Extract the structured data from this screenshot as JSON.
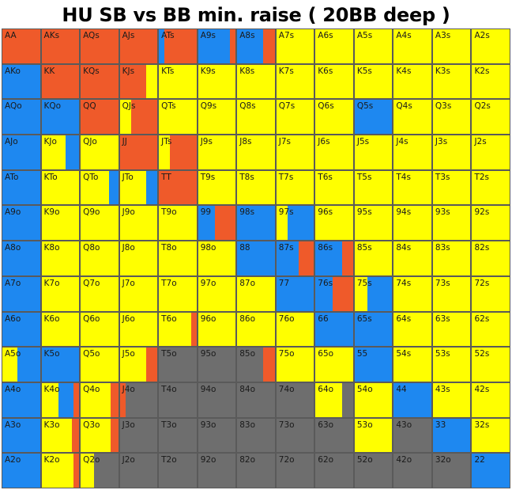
{
  "title": "HU SB vs BB min. raise ( 20BB deep )",
  "colors": {
    "raise": "#ef5a2a",
    "call": "#ffff00",
    "shove": "#1e88f0",
    "fold": "#6e6e6e",
    "border": "#5a5a5a"
  },
  "chart_data": {
    "type": "heatmap",
    "title": "HU SB vs BB min. raise ( 20BB deep )",
    "note": "Each cell's segments list action frequencies (left to right) as fractions.",
    "rows": [
      [
        "AA",
        "AKs",
        "AQs",
        "AJs",
        "ATs",
        "A9s",
        "A8s",
        "A7s",
        "A6s",
        "A5s",
        "A4s",
        "A3s",
        "A2s"
      ],
      [
        "AKo",
        "KK",
        "KQs",
        "KJs",
        "KTs",
        "K9s",
        "K8s",
        "K7s",
        "K6s",
        "K5s",
        "K4s",
        "K3s",
        "K2s"
      ],
      [
        "AQo",
        "KQo",
        "QQ",
        "QJs",
        "QTs",
        "Q9s",
        "Q8s",
        "Q7s",
        "Q6s",
        "Q5s",
        "Q4s",
        "Q3s",
        "Q2s"
      ],
      [
        "AJo",
        "KJo",
        "QJo",
        "JJ",
        "JTs",
        "J9s",
        "J8s",
        "J7s",
        "J6s",
        "J5s",
        "J4s",
        "J3s",
        "J2s"
      ],
      [
        "ATo",
        "KTo",
        "QTo",
        "JTo",
        "TT",
        "T9s",
        "T8s",
        "T7s",
        "T6s",
        "T5s",
        "T4s",
        "T3s",
        "T2s"
      ],
      [
        "A9o",
        "K9o",
        "Q9o",
        "J9o",
        "T9o",
        "99",
        "98s",
        "97s",
        "96s",
        "95s",
        "94s",
        "93s",
        "92s"
      ],
      [
        "A8o",
        "K8o",
        "Q8o",
        "J8o",
        "T8o",
        "98o",
        "88",
        "87s",
        "86s",
        "85s",
        "84s",
        "83s",
        "82s"
      ],
      [
        "A7o",
        "K7o",
        "Q7o",
        "J7o",
        "T7o",
        "97o",
        "87o",
        "77",
        "76s",
        "75s",
        "74s",
        "73s",
        "72s"
      ],
      [
        "A6o",
        "K6o",
        "Q6o",
        "J6o",
        "T6o",
        "96o",
        "86o",
        "76o",
        "66",
        "65s",
        "64s",
        "63s",
        "62s"
      ],
      [
        "A5o",
        "K5o",
        "Q5o",
        "J5o",
        "T5o",
        "95o",
        "85o",
        "75o",
        "65o",
        "55",
        "54s",
        "53s",
        "52s"
      ],
      [
        "A4o",
        "K4o",
        "Q4o",
        "J4o",
        "T4o",
        "94o",
        "84o",
        "74o",
        "64o",
        "54o",
        "44",
        "43s",
        "42s"
      ],
      [
        "A3o",
        "K3o",
        "Q3o",
        "J3o",
        "T3o",
        "93o",
        "83o",
        "73o",
        "63o",
        "53o",
        "43o",
        "33",
        "32s"
      ],
      [
        "A2o",
        "K2o",
        "Q2o",
        "J2o",
        "T2o",
        "92o",
        "82o",
        "72o",
        "62o",
        "52o",
        "42o",
        "32o",
        "22"
      ]
    ],
    "segments": [
      [
        [
          [
            "raise",
            1
          ]
        ],
        [
          [
            "raise",
            1
          ]
        ],
        [
          [
            "raise",
            1
          ]
        ],
        [
          [
            "raise",
            1
          ]
        ],
        [
          [
            "shove",
            0.15
          ],
          [
            "raise",
            0.85
          ]
        ],
        [
          [
            "shove",
            0.85
          ],
          [
            "raise",
            0.15
          ]
        ],
        [
          [
            "shove",
            0.7
          ],
          [
            "raise",
            0.3
          ]
        ],
        [
          [
            "call",
            1
          ]
        ],
        [
          [
            "call",
            1
          ]
        ],
        [
          [
            "call",
            1
          ]
        ],
        [
          [
            "call",
            1
          ]
        ],
        [
          [
            "call",
            1
          ]
        ],
        [
          [
            "call",
            1
          ]
        ]
      ],
      [
        [
          [
            "shove",
            1
          ]
        ],
        [
          [
            "raise",
            1
          ]
        ],
        [
          [
            "raise",
            1
          ]
        ],
        [
          [
            "raise",
            0.7
          ],
          [
            "call",
            0.3
          ]
        ],
        [
          [
            "call",
            1
          ]
        ],
        [
          [
            "call",
            1
          ]
        ],
        [
          [
            "call",
            1
          ]
        ],
        [
          [
            "call",
            1
          ]
        ],
        [
          [
            "call",
            1
          ]
        ],
        [
          [
            "call",
            1
          ]
        ],
        [
          [
            "call",
            1
          ]
        ],
        [
          [
            "call",
            1
          ]
        ],
        [
          [
            "call",
            1
          ]
        ]
      ],
      [
        [
          [
            "shove",
            1
          ]
        ],
        [
          [
            "shove",
            1
          ]
        ],
        [
          [
            "raise",
            1
          ]
        ],
        [
          [
            "call",
            0.3
          ],
          [
            "raise",
            0.7
          ]
        ],
        [
          [
            "call",
            1
          ]
        ],
        [
          [
            "call",
            1
          ]
        ],
        [
          [
            "call",
            1
          ]
        ],
        [
          [
            "call",
            1
          ]
        ],
        [
          [
            "call",
            1
          ]
        ],
        [
          [
            "shove",
            1
          ]
        ],
        [
          [
            "call",
            1
          ]
        ],
        [
          [
            "call",
            1
          ]
        ],
        [
          [
            "call",
            1
          ]
        ]
      ],
      [
        [
          [
            "shove",
            1
          ]
        ],
        [
          [
            "call",
            0.65
          ],
          [
            "shove",
            0.35
          ]
        ],
        [
          [
            "call",
            1
          ]
        ],
        [
          [
            "raise",
            1
          ]
        ],
        [
          [
            "call",
            0.3
          ],
          [
            "raise",
            0.7
          ]
        ],
        [
          [
            "call",
            1
          ]
        ],
        [
          [
            "call",
            1
          ]
        ],
        [
          [
            "call",
            1
          ]
        ],
        [
          [
            "call",
            1
          ]
        ],
        [
          [
            "call",
            1
          ]
        ],
        [
          [
            "call",
            1
          ]
        ],
        [
          [
            "call",
            1
          ]
        ],
        [
          [
            "call",
            1
          ]
        ]
      ],
      [
        [
          [
            "shove",
            1
          ]
        ],
        [
          [
            "call",
            1
          ]
        ],
        [
          [
            "call",
            0.75
          ],
          [
            "shove",
            0.25
          ]
        ],
        [
          [
            "call",
            0.7
          ],
          [
            "shove",
            0.3
          ]
        ],
        [
          [
            "raise",
            1
          ]
        ],
        [
          [
            "call",
            1
          ]
        ],
        [
          [
            "call",
            1
          ]
        ],
        [
          [
            "call",
            1
          ]
        ],
        [
          [
            "call",
            1
          ]
        ],
        [
          [
            "call",
            1
          ]
        ],
        [
          [
            "call",
            1
          ]
        ],
        [
          [
            "call",
            1
          ]
        ],
        [
          [
            "call",
            1
          ]
        ]
      ],
      [
        [
          [
            "shove",
            1
          ]
        ],
        [
          [
            "call",
            1
          ]
        ],
        [
          [
            "call",
            1
          ]
        ],
        [
          [
            "call",
            1
          ]
        ],
        [
          [
            "call",
            1
          ]
        ],
        [
          [
            "shove",
            0.45
          ],
          [
            "raise",
            0.55
          ]
        ],
        [
          [
            "shove",
            1
          ]
        ],
        [
          [
            "call",
            0.3
          ],
          [
            "shove",
            0.7
          ]
        ],
        [
          [
            "call",
            1
          ]
        ],
        [
          [
            "call",
            1
          ]
        ],
        [
          [
            "call",
            1
          ]
        ],
        [
          [
            "call",
            1
          ]
        ],
        [
          [
            "call",
            1
          ]
        ]
      ],
      [
        [
          [
            "shove",
            1
          ]
        ],
        [
          [
            "call",
            1
          ]
        ],
        [
          [
            "call",
            1
          ]
        ],
        [
          [
            "call",
            1
          ]
        ],
        [
          [
            "call",
            1
          ]
        ],
        [
          [
            "call",
            1
          ]
        ],
        [
          [
            "shove",
            1
          ]
        ],
        [
          [
            "shove",
            0.6
          ],
          [
            "raise",
            0.4
          ]
        ],
        [
          [
            "shove",
            0.7
          ],
          [
            "raise",
            0.3
          ]
        ],
        [
          [
            "call",
            1
          ]
        ],
        [
          [
            "call",
            1
          ]
        ],
        [
          [
            "call",
            1
          ]
        ],
        [
          [
            "call",
            1
          ]
        ]
      ],
      [
        [
          [
            "shove",
            1
          ]
        ],
        [
          [
            "call",
            1
          ]
        ],
        [
          [
            "call",
            1
          ]
        ],
        [
          [
            "call",
            1
          ]
        ],
        [
          [
            "call",
            1
          ]
        ],
        [
          [
            "call",
            1
          ]
        ],
        [
          [
            "call",
            1
          ]
        ],
        [
          [
            "shove",
            1
          ]
        ],
        [
          [
            "shove",
            0.45
          ],
          [
            "raise",
            0.55
          ]
        ],
        [
          [
            "call",
            0.35
          ],
          [
            "shove",
            0.65
          ]
        ],
        [
          [
            "call",
            1
          ]
        ],
        [
          [
            "call",
            1
          ]
        ],
        [
          [
            "call",
            1
          ]
        ]
      ],
      [
        [
          [
            "shove",
            1
          ]
        ],
        [
          [
            "call",
            1
          ]
        ],
        [
          [
            "call",
            1
          ]
        ],
        [
          [
            "call",
            1
          ]
        ],
        [
          [
            "call",
            0.85
          ],
          [
            "raise",
            0.15
          ]
        ],
        [
          [
            "call",
            1
          ]
        ],
        [
          [
            "call",
            1
          ]
        ],
        [
          [
            "call",
            1
          ]
        ],
        [
          [
            "shove",
            1
          ]
        ],
        [
          [
            "shove",
            1
          ]
        ],
        [
          [
            "call",
            1
          ]
        ],
        [
          [
            "call",
            1
          ]
        ],
        [
          [
            "call",
            1
          ]
        ]
      ],
      [
        [
          [
            "call",
            0.4
          ],
          [
            "shove",
            0.6
          ]
        ],
        [
          [
            "shove",
            1
          ]
        ],
        [
          [
            "call",
            1
          ]
        ],
        [
          [
            "call",
            0.7
          ],
          [
            "raise",
            0.3
          ]
        ],
        [
          [
            "fold",
            1
          ]
        ],
        [
          [
            "fold",
            1
          ]
        ],
        [
          [
            "fold",
            0.7
          ],
          [
            "raise",
            0.3
          ]
        ],
        [
          [
            "call",
            1
          ]
        ],
        [
          [
            "call",
            1
          ]
        ],
        [
          [
            "shove",
            1
          ]
        ],
        [
          [
            "call",
            1
          ]
        ],
        [
          [
            "call",
            1
          ]
        ],
        [
          [
            "call",
            1
          ]
        ]
      ],
      [
        [
          [
            "shove",
            1
          ]
        ],
        [
          [
            "call",
            0.45
          ],
          [
            "shove",
            0.4
          ],
          [
            "raise",
            0.15
          ]
        ],
        [
          [
            "call",
            0.8
          ],
          [
            "raise",
            0.2
          ]
        ],
        [
          [
            "raise",
            0.15
          ],
          [
            "fold",
            0.85
          ]
        ],
        [
          [
            "fold",
            1
          ]
        ],
        [
          [
            "fold",
            1
          ]
        ],
        [
          [
            "fold",
            1
          ]
        ],
        [
          [
            "fold",
            1
          ]
        ],
        [
          [
            "call",
            0.7
          ],
          [
            "fold",
            0.3
          ]
        ],
        [
          [
            "call",
            1
          ]
        ],
        [
          [
            "shove",
            1
          ]
        ],
        [
          [
            "call",
            1
          ]
        ],
        [
          [
            "call",
            1
          ]
        ]
      ],
      [
        [
          [
            "shove",
            1
          ]
        ],
        [
          [
            "call",
            0.8
          ],
          [
            "raise",
            0.2
          ]
        ],
        [
          [
            "call",
            0.8
          ],
          [
            "raise",
            0.2
          ]
        ],
        [
          [
            "fold",
            1
          ]
        ],
        [
          [
            "fold",
            1
          ]
        ],
        [
          [
            "fold",
            1
          ]
        ],
        [
          [
            "fold",
            1
          ]
        ],
        [
          [
            "fold",
            1
          ]
        ],
        [
          [
            "fold",
            1
          ]
        ],
        [
          [
            "call",
            1
          ]
        ],
        [
          [
            "fold",
            1
          ]
        ],
        [
          [
            "shove",
            1
          ]
        ],
        [
          [
            "call",
            1
          ]
        ]
      ],
      [
        [
          [
            "shove",
            1
          ]
        ],
        [
          [
            "call",
            0.85
          ],
          [
            "raise",
            0.15
          ]
        ],
        [
          [
            "call",
            0.35
          ],
          [
            "fold",
            0.65
          ]
        ],
        [
          [
            "fold",
            1
          ]
        ],
        [
          [
            "fold",
            1
          ]
        ],
        [
          [
            "fold",
            1
          ]
        ],
        [
          [
            "fold",
            1
          ]
        ],
        [
          [
            "fold",
            1
          ]
        ],
        [
          [
            "fold",
            1
          ]
        ],
        [
          [
            "fold",
            1
          ]
        ],
        [
          [
            "fold",
            1
          ]
        ],
        [
          [
            "fold",
            1
          ]
        ],
        [
          [
            "shove",
            1
          ]
        ]
      ]
    ]
  }
}
